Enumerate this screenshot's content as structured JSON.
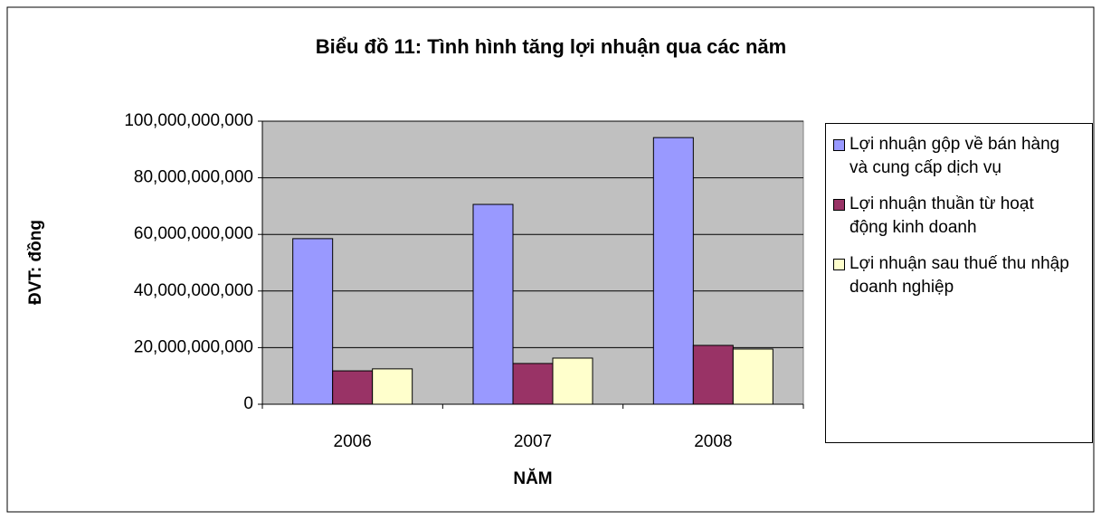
{
  "chart_data": {
    "type": "bar",
    "title": "Biểu đồ 11: Tình hình tăng lợi nhuận qua các năm",
    "x_label": "NĂM",
    "y_label": "ĐVT: đồng",
    "categories": [
      "2006",
      "2007",
      "2008"
    ],
    "series": [
      {
        "name": "Lợi nhuận gộp về bán hàng và cung cấp dịch vụ",
        "color": "#9999ff",
        "values": [
          58500000000,
          70600000000,
          94200000000
        ]
      },
      {
        "name": "Lợi nhuận thuần từ hoạt động kinh doanh",
        "color": "#993366",
        "values": [
          11800000000,
          14400000000,
          20800000000
        ]
      },
      {
        "name": "Lợi nhuận sau thuế thu nhập doanh nghiệp",
        "color": "#ffffcc",
        "values": [
          12500000000,
          16300000000,
          19500000000
        ]
      }
    ],
    "ylim": [
      0,
      100000000000
    ],
    "yticks": [
      0,
      {
        "value": 20000000000,
        "label": "20,000,000,000"
      },
      {
        "value": 40000000000,
        "label": "40,000,000,000"
      },
      {
        "value": 60000000000,
        "label": "60,000,000,000"
      },
      {
        "value": 80000000000,
        "label": "80,000,000,000"
      },
      {
        "value": 100000000000,
        "label": "100,000,000,000"
      }
    ],
    "grid": true,
    "legend": "right"
  }
}
